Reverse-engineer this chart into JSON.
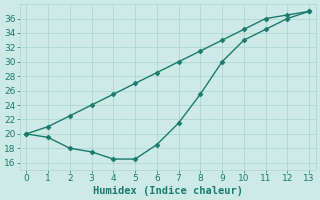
{
  "xlabel": "Humidex (Indice chaleur)",
  "x": [
    0,
    1,
    2,
    3,
    4,
    5,
    6,
    7,
    8,
    9,
    10,
    11,
    12,
    13
  ],
  "line1_low": [
    20,
    19.5,
    18,
    17.5,
    16.5,
    16.5,
    18.5,
    21.5,
    25.5,
    30,
    33.0,
    34.5,
    36.0,
    37.0
  ],
  "line2_high": [
    20,
    21.0,
    22.5,
    24.0,
    25.5,
    27.0,
    28.5,
    30.0,
    31.5,
    33.0,
    34.5,
    36.0,
    36.5,
    37.0
  ],
  "ylim": [
    15,
    38
  ],
  "xlim": [
    -0.3,
    13.3
  ],
  "yticks": [
    16,
    18,
    20,
    22,
    24,
    26,
    28,
    30,
    32,
    34,
    36
  ],
  "xticks": [
    0,
    1,
    2,
    3,
    4,
    5,
    6,
    7,
    8,
    9,
    10,
    11,
    12,
    13
  ],
  "line_color": "#1a7a6e",
  "bg_color": "#ceeae7",
  "grid_major_color": "#a8d5d0",
  "grid_minor_color": "#bde3df",
  "marker": "D",
  "marker_size": 2.5,
  "line_width": 1.0,
  "tick_fontsize": 6.5,
  "xlabel_fontsize": 7.5
}
